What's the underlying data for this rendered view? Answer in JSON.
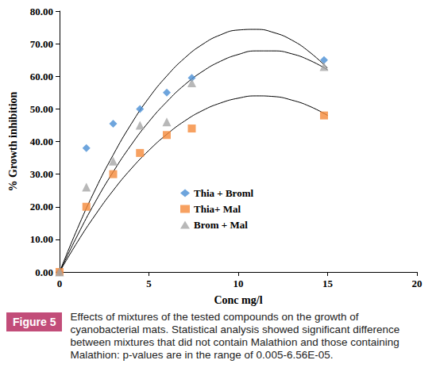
{
  "chart_data": {
    "type": "scatter",
    "xlabel": "Conc mg/l",
    "ylabel": "% Growth inhibition",
    "x": [
      0,
      1.5,
      3,
      4.5,
      6,
      7.4,
      14.8
    ],
    "series": [
      {
        "name": "Thia + Broml",
        "color": "#4a8fd4",
        "marker": "diamond",
        "values": [
          0,
          38,
          45.5,
          50,
          55,
          59.5,
          65
        ],
        "trend": {
          "x": [
            0,
            1,
            2,
            3,
            4,
            5,
            6,
            7,
            8,
            9,
            10,
            11,
            12,
            13,
            14,
            15
          ],
          "values": [
            0,
            13.3,
            25.3,
            35.9,
            45.3,
            53.4,
            60.1,
            65.6,
            69.8,
            72.7,
            74.2,
            74.4,
            73.4,
            71.1,
            67.4,
            62.5
          ]
        }
      },
      {
        "name": "Thia+ Mal",
        "color": "#f58a3a",
        "marker": "square",
        "values": [
          0,
          20,
          30,
          36.5,
          42,
          44,
          48
        ],
        "trend": {
          "x": [
            0,
            1,
            2,
            3,
            4,
            5,
            6,
            7,
            8,
            9,
            10,
            11,
            12,
            13,
            14,
            15
          ],
          "values": [
            0,
            9.2,
            17.5,
            25.0,
            31.6,
            37.3,
            42.2,
            46.3,
            49.5,
            51.8,
            53.3,
            54.0,
            53.8,
            52.7,
            50.8,
            48.0
          ]
        }
      },
      {
        "name": "Brom + Mal",
        "color": "#a6a6a6",
        "marker": "triangle",
        "values": [
          0,
          26,
          34,
          45,
          46,
          58,
          63
        ],
        "trend": {
          "x": [
            0,
            1,
            2,
            3,
            4,
            5,
            6,
            7,
            8,
            9,
            10,
            11,
            12,
            13,
            14,
            15
          ],
          "values": [
            0,
            11.2,
            21.5,
            30.7,
            38.9,
            46.1,
            52.2,
            57.4,
            61.5,
            64.6,
            66.7,
            67.8,
            67.8,
            66.9,
            64.9,
            62.0
          ]
        }
      }
    ],
    "xlim": [
      0,
      20
    ],
    "xticks": [
      0,
      5,
      10,
      15,
      20
    ],
    "ylim": [
      0,
      80
    ],
    "yticks": [
      {
        "value": 0,
        "label": "0.00"
      },
      {
        "value": 10,
        "label": "10.00"
      },
      {
        "value": 20,
        "label": "20.00"
      },
      {
        "value": 30,
        "label": "30.00"
      },
      {
        "value": 40,
        "label": "40.00"
      },
      {
        "value": 50,
        "label": "50.00"
      },
      {
        "value": 60,
        "label": "60.00"
      },
      {
        "value": 70,
        "label": "70.00"
      },
      {
        "value": 80,
        "label": "80.00"
      }
    ],
    "grid": false,
    "legend": "center"
  },
  "figure": {
    "label": "Figure 5",
    "caption": "Effects of mixtures of the tested compounds on the growth of cyanobacterial mats. Statistical analysis showed significant difference between mixtures that did not contain Malathion and those containing Malathion: p-values are in the range of 0.005-6.56E-05."
  }
}
